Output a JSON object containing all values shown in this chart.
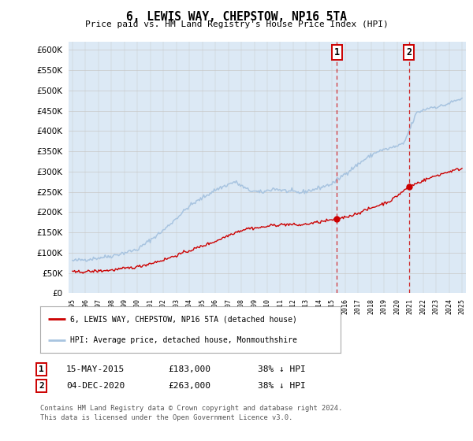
{
  "title": "6, LEWIS WAY, CHEPSTOW, NP16 5TA",
  "subtitle": "Price paid vs. HM Land Registry's House Price Index (HPI)",
  "ytick_values": [
    0,
    50000,
    100000,
    150000,
    200000,
    250000,
    300000,
    350000,
    400000,
    450000,
    500000,
    550000,
    600000
  ],
  "x_start_year": 1995,
  "x_end_year": 2025,
  "hpi_color": "#a8c4e0",
  "price_color": "#cc0000",
  "sale1_date": 2015.37,
  "sale1_price": 183000,
  "sale2_date": 2020.92,
  "sale2_price": 263000,
  "vline_color": "#cc0000",
  "annotation_box_color": "#cc0000",
  "legend_label_price": "6, LEWIS WAY, CHEPSTOW, NP16 5TA (detached house)",
  "legend_label_hpi": "HPI: Average price, detached house, Monmouthshire",
  "footnote1": "Contains HM Land Registry data © Crown copyright and database right 2024.",
  "footnote2": "This data is licensed under the Open Government Licence v3.0.",
  "background_color": "#dce9f5",
  "ylim_max": 620000
}
